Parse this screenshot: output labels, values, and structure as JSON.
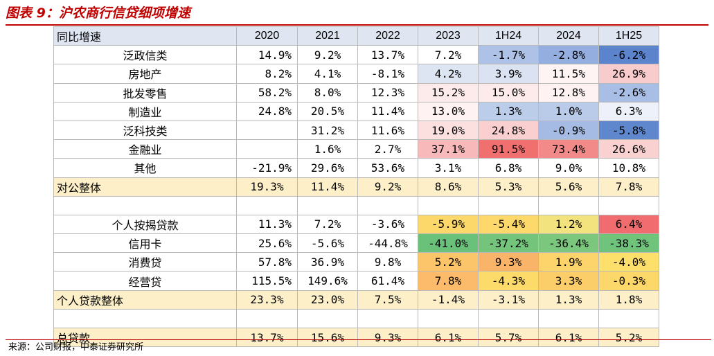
{
  "figure": {
    "title": "图表 9：沪农商行信贷细项增速",
    "source": "来源：公司财报，中泰证券研究所"
  },
  "table": {
    "header": [
      "同比增速",
      "2020",
      "2021",
      "2022",
      "2023",
      "1H24",
      "2024",
      "1H25"
    ],
    "rows": [
      {
        "label": "泛政信类",
        "type": "item",
        "cells": [
          "14.9%",
          "9.2%",
          "13.7%",
          "7.2%",
          "-1.7%",
          "-2.8%",
          "-6.2%"
        ],
        "colors": [
          "",
          "",
          "",
          "#ffffff",
          "#adc2e6",
          "#94aee0",
          "#5b84cc"
        ]
      },
      {
        "label": "房地产",
        "type": "item",
        "cells": [
          "8.2%",
          "4.1%",
          "-8.1%",
          "4.2%",
          "3.9%",
          "11.5%",
          "26.9%"
        ],
        "colors": [
          "",
          "",
          "",
          "#dde5f3",
          "#dbe3f2",
          "#fef4f4",
          "#f8cccc"
        ]
      },
      {
        "label": "批发零售",
        "type": "item",
        "cells": [
          "58.2%",
          "8.0%",
          "12.3%",
          "15.2%",
          "15.0%",
          "12.8%",
          "-2.6%"
        ],
        "colors": [
          "",
          "",
          "",
          "#fdeaea",
          "#fdebeb",
          "#fef2f2",
          "#a8bee5"
        ]
      },
      {
        "label": "制造业",
        "type": "item",
        "cells": [
          "24.8%",
          "20.5%",
          "11.4%",
          "13.0%",
          "1.3%",
          "1.0%",
          "6.3%"
        ],
        "colors": [
          "",
          "",
          "",
          "#fef2f2",
          "#bccde9",
          "#bacbe9",
          "#eef1f9"
        ]
      },
      {
        "label": "泛科技类",
        "type": "item",
        "cells": [
          "",
          "31.2%",
          "11.6%",
          "19.0%",
          "24.8%",
          "-0.9%",
          "-5.8%"
        ],
        "colors": [
          "",
          "",
          "",
          "#fce0e0",
          "#facfcf",
          "#a5bbe4",
          "#5f87cd"
        ]
      },
      {
        "label": "金融业",
        "type": "item",
        "cells": [
          "",
          "1.6%",
          "2.7%",
          "37.1%",
          "91.5%",
          "73.4%",
          "26.6%"
        ],
        "colors": [
          "",
          "",
          "",
          "#f7b9b9",
          "#f07070",
          "#f38a8a",
          "#fad1d1"
        ]
      },
      {
        "label": "其他",
        "type": "item",
        "cells": [
          "-21.9%",
          "29.6%",
          "53.6%",
          "3.1%",
          "6.8%",
          "9.0%",
          "10.8%"
        ],
        "colors": [
          "",
          "",
          "",
          "#ffffff",
          "#ffffff",
          "#ffffff",
          "#ffffff"
        ]
      },
      {
        "label": "对公整体",
        "type": "sub",
        "cells": [
          "19.3%",
          "11.4%",
          "9.2%",
          "8.6%",
          "5.3%",
          "5.6%",
          "7.8%"
        ],
        "colors": [
          "",
          "",
          "",
          "",
          "",
          "",
          ""
        ]
      },
      {
        "label": "",
        "type": "blank",
        "cells": [
          "",
          "",
          "",
          "",
          "",
          "",
          ""
        ],
        "colors": [
          "",
          "",
          "",
          "",
          "",
          "",
          ""
        ]
      },
      {
        "label": "个人按揭贷款",
        "type": "item",
        "cells": [
          "11.3%",
          "7.2%",
          "-3.6%",
          "-5.9%",
          "-5.4%",
          "1.2%",
          "6.4%"
        ],
        "colors": [
          "",
          "",
          "",
          "#fcd86a",
          "#fdd96b",
          "#f3e37e",
          "#f16c6e"
        ]
      },
      {
        "label": "信用卡",
        "type": "item",
        "cells": [
          "25.6%",
          "-5.6%",
          "-44.8%",
          "-41.0%",
          "-37.2%",
          "-36.4%",
          "-38.3%"
        ],
        "colors": [
          "",
          "",
          "",
          "#6ac27a",
          "#74c47c",
          "#7ac77d",
          "#6fc37b"
        ]
      },
      {
        "label": "消费贷",
        "type": "item",
        "cells": [
          "57.8%",
          "36.9%",
          "9.8%",
          "5.2%",
          "9.3%",
          "1.9%",
          "-4.0%"
        ],
        "colors": [
          "",
          "",
          "",
          "#fcc56a",
          "#fab46a",
          "#fcd46b",
          "#fddf6b"
        ]
      },
      {
        "label": "经营贷",
        "type": "item",
        "cells": [
          "115.5%",
          "149.6%",
          "61.4%",
          "7.8%",
          "-4.3%",
          "3.3%",
          "-0.3%"
        ],
        "colors": [
          "",
          "",
          "",
          "#fbbb6a",
          "#fddb6b",
          "#fcce6a",
          "#fcd86a"
        ]
      },
      {
        "label": "个人贷款整体",
        "type": "sub",
        "cells": [
          "23.3%",
          "23.0%",
          "7.5%",
          "-1.4%",
          "-3.1%",
          "1.3%",
          "1.8%"
        ],
        "colors": [
          "",
          "",
          "",
          "",
          "",
          "",
          ""
        ]
      },
      {
        "label": "",
        "type": "blank",
        "cells": [
          "",
          "",
          "",
          "",
          "",
          "",
          ""
        ],
        "colors": [
          "",
          "",
          "",
          "",
          "",
          "",
          ""
        ]
      },
      {
        "label": "总贷款",
        "type": "sub",
        "cells": [
          "13.7%",
          "15.6%",
          "9.3%",
          "6.1%",
          "5.7%",
          "6.1%",
          "5.2%"
        ],
        "colors": [
          "",
          "",
          "",
          "",
          "",
          "",
          ""
        ]
      }
    ]
  }
}
